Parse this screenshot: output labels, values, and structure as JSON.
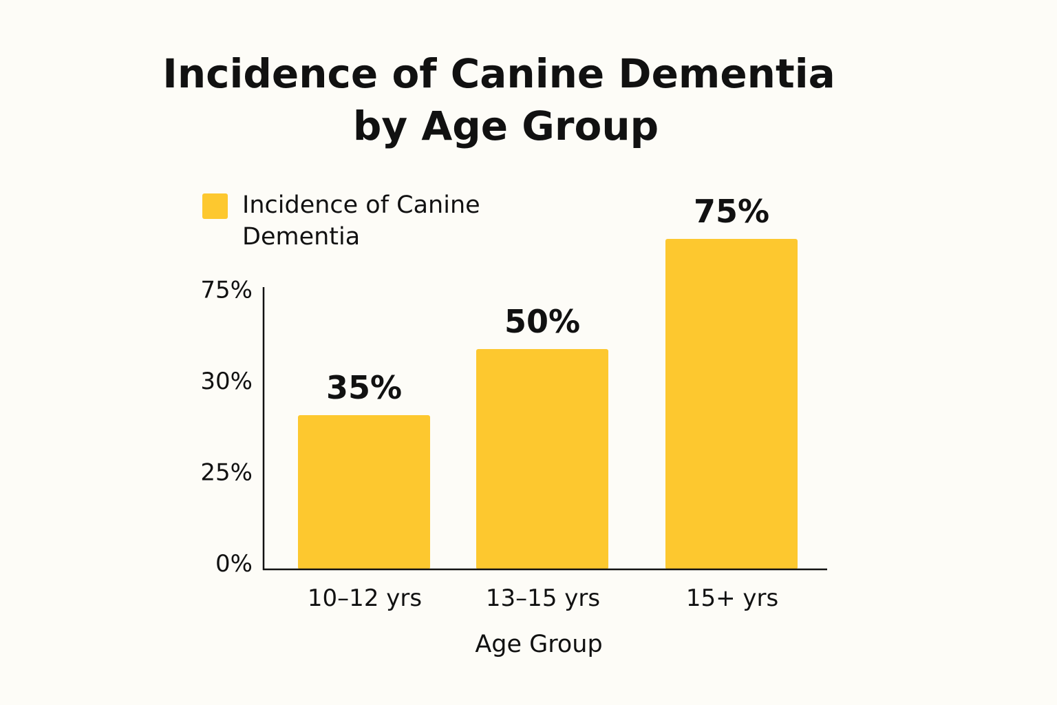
{
  "chart_data": {
    "type": "bar",
    "title_lines": [
      "Incidence of Canine Dementia",
      "by Age Group"
    ],
    "legend": {
      "label_lines": [
        "Incidence of Canine",
        "Dementia"
      ],
      "placement": "top-left"
    },
    "categories": [
      "10–12 yrs",
      "13–15 yrs",
      "15+ yrs"
    ],
    "series": [
      {
        "name": "Incidence of Canine Dementia",
        "values": [
          35,
          50,
          75
        ]
      }
    ],
    "data_labels": [
      "35%",
      "50%",
      "75%"
    ],
    "y_tick_labels": [
      "0%",
      "25%",
      "30%",
      "75%"
    ],
    "xlabel": "Age Group",
    "ylabel": "",
    "ylim": [
      0,
      75
    ],
    "grid": false,
    "colors": {
      "bar": "#fdc82f",
      "background": "#fdfcf7",
      "text": "#111111"
    }
  }
}
